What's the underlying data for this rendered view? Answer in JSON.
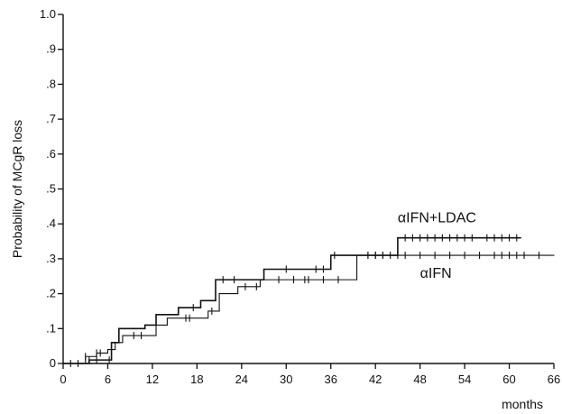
{
  "chart_data": {
    "type": "line",
    "title": "",
    "xlabel": "months",
    "ylabel": "Probability of MCgR loss",
    "xlim": [
      0,
      66
    ],
    "ylim": [
      0,
      1.0
    ],
    "x_ticks": [
      0,
      6,
      12,
      18,
      24,
      30,
      36,
      42,
      48,
      54,
      60,
      66
    ],
    "x_tick_labels": [
      "0",
      "6",
      "12",
      "18",
      "24",
      "30",
      "36",
      "42",
      "48",
      "54",
      "60",
      "66"
    ],
    "y_ticks": [
      0,
      0.1,
      0.2,
      0.3,
      0.4,
      0.5,
      0.6,
      0.7,
      0.8,
      0.9,
      1.0
    ],
    "y_tick_labels": [
      "0",
      ".1",
      ".2",
      ".3",
      ".4",
      ".5",
      ".6",
      ".7",
      ".8",
      ".9",
      "1.0"
    ],
    "grid": false,
    "step": true,
    "series": [
      {
        "name": "αIFN+LDAC",
        "stroke_width": 1.6,
        "steps": [
          [
            0,
            0.0
          ],
          [
            3.5,
            0.01
          ],
          [
            6.5,
            0.06
          ],
          [
            7.5,
            0.1
          ],
          [
            11,
            0.11
          ],
          [
            12.5,
            0.14
          ],
          [
            15.5,
            0.16
          ],
          [
            18.5,
            0.18
          ],
          [
            20.5,
            0.24
          ],
          [
            27,
            0.27
          ],
          [
            36,
            0.31
          ],
          [
            45,
            0.36
          ],
          [
            61.5,
            0.36
          ]
        ],
        "censored": [
          1,
          2,
          3.5,
          4.5,
          6.2,
          17.5,
          21.5,
          23,
          30,
          34,
          35,
          36.5,
          41,
          42,
          43,
          44,
          46,
          47,
          48,
          49,
          50,
          51,
          52,
          53,
          54,
          55,
          57,
          58,
          59,
          60,
          61
        ]
      },
      {
        "name": "αIFN",
        "stroke_width": 1.1,
        "steps": [
          [
            0,
            0.0
          ],
          [
            3,
            0.02
          ],
          [
            4.5,
            0.03
          ],
          [
            6,
            0.04
          ],
          [
            7,
            0.06
          ],
          [
            8,
            0.08
          ],
          [
            12.5,
            0.11
          ],
          [
            14,
            0.13
          ],
          [
            19.5,
            0.15
          ],
          [
            21,
            0.2
          ],
          [
            23.5,
            0.22
          ],
          [
            26.5,
            0.24
          ],
          [
            39.5,
            0.31
          ],
          [
            66,
            0.31
          ]
        ],
        "censored": [
          3,
          4.5,
          5,
          9.5,
          10.5,
          16.5,
          17,
          20,
          24.5,
          26,
          29,
          31,
          32.5,
          33,
          35,
          37,
          41,
          42,
          43,
          45,
          46,
          48,
          50,
          52,
          54,
          56,
          58,
          59,
          60,
          61,
          62,
          64
        ]
      }
    ],
    "annotations": [
      {
        "text": "αIFN+LDAC",
        "series": "αIFN+LDAC"
      },
      {
        "text": "αIFN",
        "series": "αIFN"
      }
    ]
  }
}
